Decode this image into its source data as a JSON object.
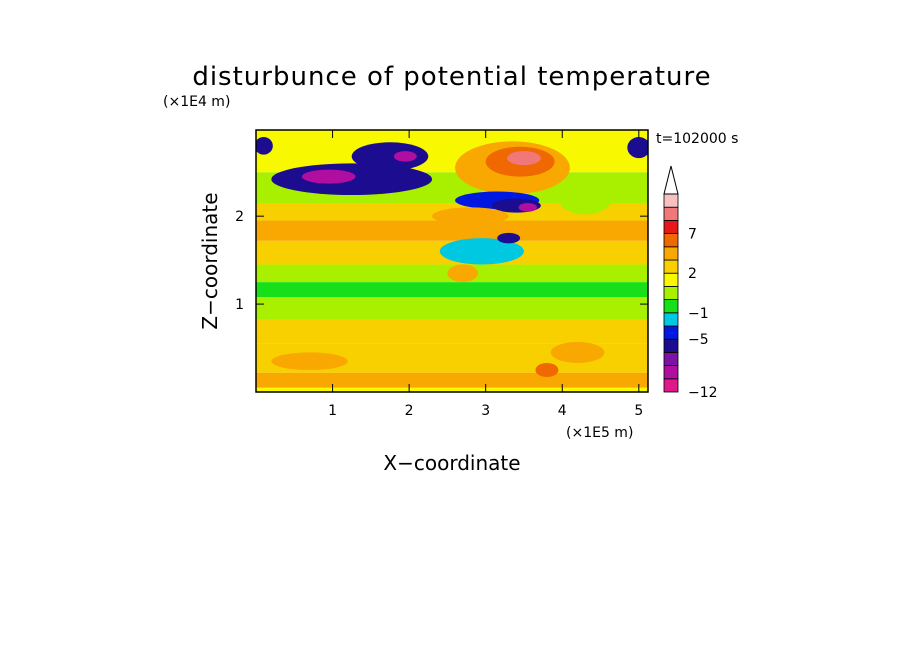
{
  "chart_data": {
    "type": "heatmap",
    "title": "disturbunce of potential temperature",
    "xlabel": "X−coordinate",
    "ylabel": "Z−coordinate",
    "x_unit": "(×1E5 m)",
    "z_unit": "(×1E4 m)",
    "time_label": "t=102000 s",
    "xlim": [
      0,
      5.12
    ],
    "ylim": [
      0,
      2.98
    ],
    "x_ticks": [
      1,
      2,
      3,
      4,
      5
    ],
    "y_ticks": [
      1,
      2
    ],
    "colorbar": {
      "levels": [
        -12,
        -10,
        -8,
        -6,
        -5,
        -3,
        -1,
        0,
        1,
        2,
        3,
        5,
        7,
        8,
        10,
        12
      ],
      "labels": [
        {
          "value": -12,
          "text": "−12"
        },
        {
          "value": -5,
          "text": "−5"
        },
        {
          "value": -1,
          "text": "−1"
        },
        {
          "value": 2,
          "text": "2"
        },
        {
          "value": 7,
          "text": "7"
        }
      ],
      "colors": [
        "#e0188c",
        "#b00ea0",
        "#7d12a6",
        "#1c0c90",
        "#0018e0",
        "#00c8e0",
        "#18e018",
        "#a8f000",
        "#f8f800",
        "#f8d000",
        "#f8a800",
        "#f06800",
        "#e81818",
        "#f07878",
        "#f8c0c0"
      ],
      "extend": "max"
    },
    "bands": [
      {
        "z0": 0.0,
        "z1": 0.05,
        "value": 1.5
      },
      {
        "z0": 0.05,
        "z1": 0.22,
        "value": 4.0
      },
      {
        "z0": 0.22,
        "z1": 0.55,
        "value": 2.5
      },
      {
        "z0": 0.55,
        "z1": 0.82,
        "value": 2.0
      },
      {
        "z0": 0.82,
        "z1": 1.08,
        "value": 0.5
      },
      {
        "z0": 1.08,
        "z1": 1.25,
        "value": -0.5
      },
      {
        "z0": 1.25,
        "z1": 1.45,
        "value": 0.5
      },
      {
        "z0": 1.45,
        "z1": 1.72,
        "value": 2.5
      },
      {
        "z0": 1.72,
        "z1": 1.95,
        "value": 3.5
      },
      {
        "z0": 1.95,
        "z1": 2.15,
        "value": 2.5
      },
      {
        "z0": 2.15,
        "z1": 2.5,
        "value": 0.5
      },
      {
        "z0": 2.5,
        "z1": 2.98,
        "value": 1.5
      }
    ],
    "anomalies": [
      {
        "x": 1.25,
        "z": 2.42,
        "rx": 1.05,
        "rz": 0.18,
        "value": -6.0
      },
      {
        "x": 1.75,
        "z": 2.68,
        "rx": 0.5,
        "rz": 0.16,
        "value": -5.5
      },
      {
        "x": 0.95,
        "z": 2.45,
        "rx": 0.35,
        "rz": 0.08,
        "value": -8.5
      },
      {
        "x": 1.95,
        "z": 2.68,
        "rx": 0.15,
        "rz": 0.06,
        "value": -9.0
      },
      {
        "x": 0.1,
        "z": 2.8,
        "rx": 0.12,
        "rz": 0.1,
        "value": -5.5
      },
      {
        "x": 5.0,
        "z": 2.78,
        "rx": 0.15,
        "rz": 0.12,
        "value": -5.5
      },
      {
        "x": 3.35,
        "z": 2.55,
        "rx": 0.75,
        "rz": 0.3,
        "value": 3.5
      },
      {
        "x": 3.45,
        "z": 2.62,
        "rx": 0.45,
        "rz": 0.17,
        "value": 6.0
      },
      {
        "x": 3.5,
        "z": 2.66,
        "rx": 0.22,
        "rz": 0.08,
        "value": 8.5
      },
      {
        "x": 3.15,
        "z": 2.18,
        "rx": 0.55,
        "rz": 0.1,
        "value": -3.5
      },
      {
        "x": 3.4,
        "z": 2.12,
        "rx": 0.32,
        "rz": 0.08,
        "value": -5.5
      },
      {
        "x": 3.55,
        "z": 2.1,
        "rx": 0.12,
        "rz": 0.05,
        "value": -8.5
      },
      {
        "x": 2.95,
        "z": 1.6,
        "rx": 0.55,
        "rz": 0.15,
        "value": -2.0
      },
      {
        "x": 3.3,
        "z": 1.75,
        "rx": 0.15,
        "rz": 0.06,
        "value": -5.5
      },
      {
        "x": 4.3,
        "z": 2.2,
        "rx": 0.35,
        "rz": 0.18,
        "value": 0.5
      },
      {
        "x": 2.8,
        "z": 2.0,
        "rx": 0.5,
        "rz": 0.1,
        "value": 4.0
      },
      {
        "x": 2.7,
        "z": 1.35,
        "rx": 0.2,
        "rz": 0.1,
        "value": 3.0
      },
      {
        "x": 4.2,
        "z": 0.45,
        "rx": 0.35,
        "rz": 0.12,
        "value": 4.5
      },
      {
        "x": 3.8,
        "z": 0.25,
        "rx": 0.15,
        "rz": 0.08,
        "value": 6.0
      },
      {
        "x": 0.7,
        "z": 0.35,
        "rx": 0.5,
        "rz": 0.1,
        "value": 3.5
      }
    ]
  }
}
